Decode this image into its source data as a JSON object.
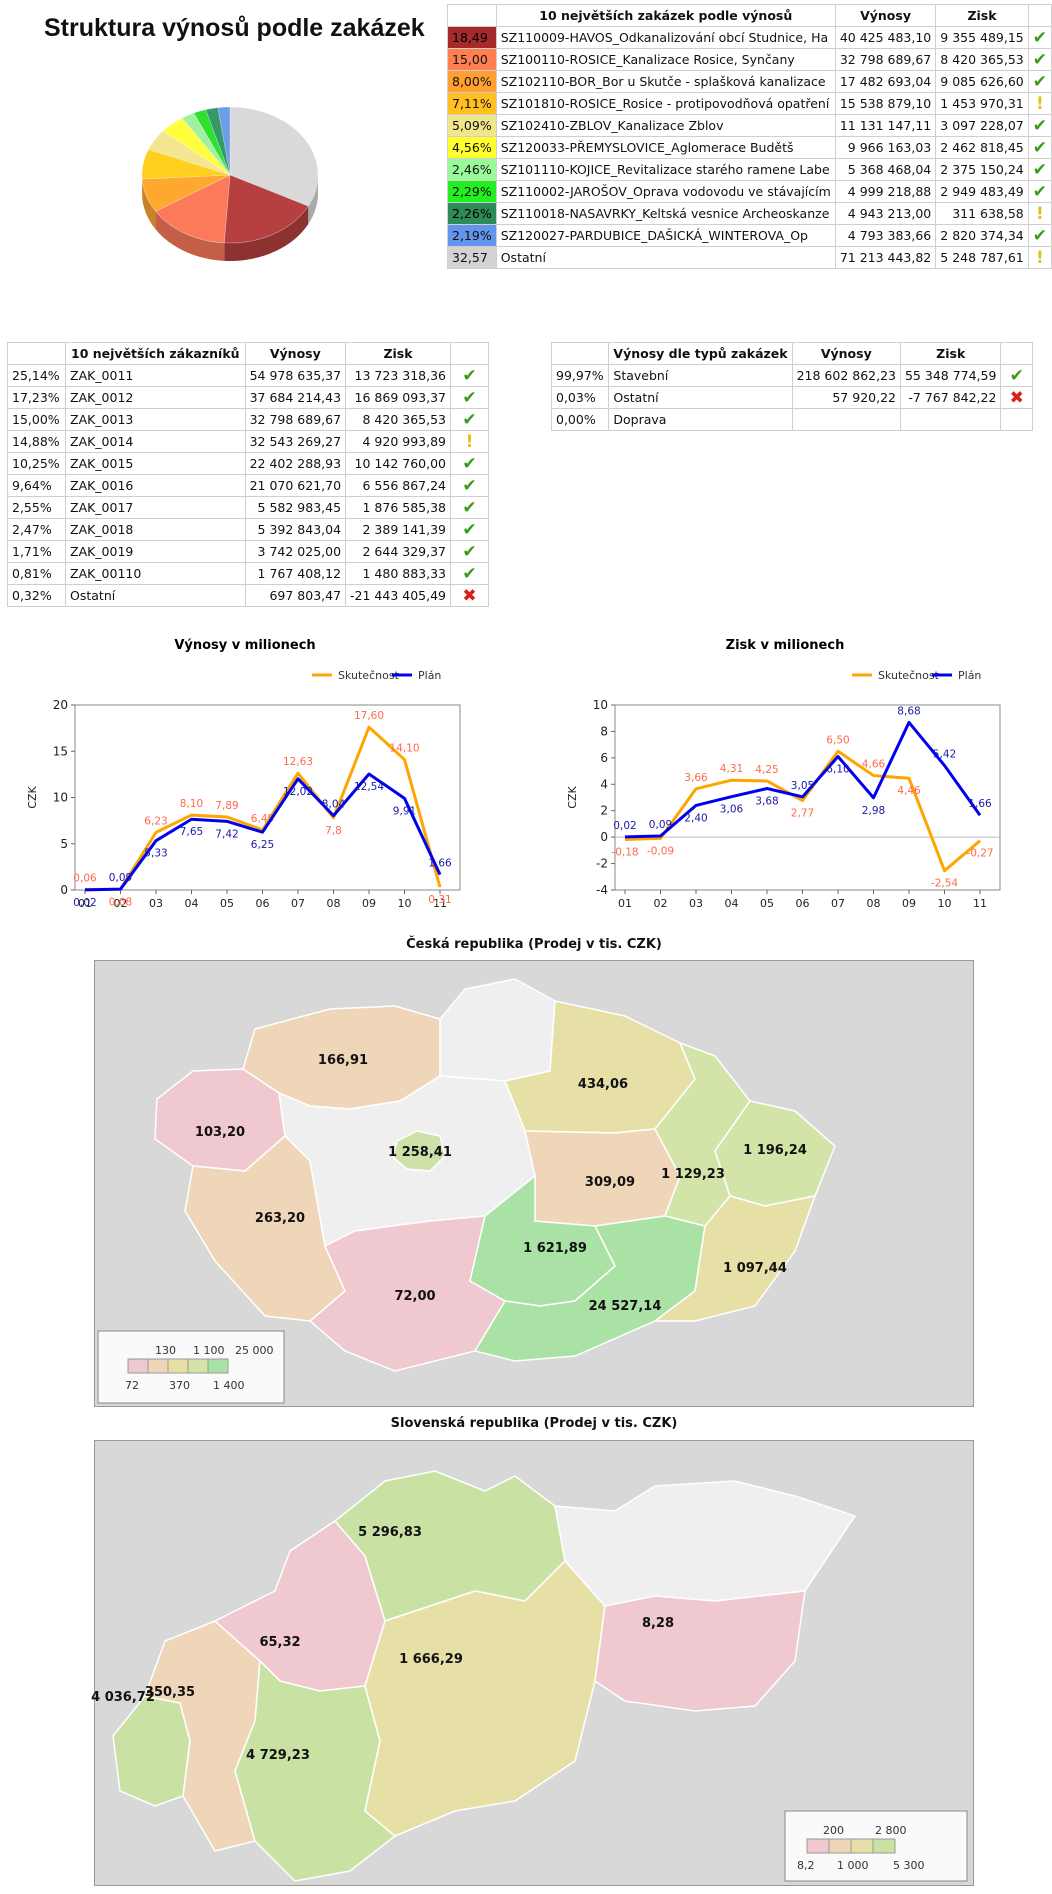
{
  "title": "Struktura výnosů podle zakázek",
  "top_orders": {
    "header": [
      "10 největších zakázek podle výnosů",
      "Výnosy",
      "Zisk"
    ],
    "rows": [
      {
        "pct": "18,49",
        "name": "SZ110009-HAVOS_Odkanalizování obcí Studnice, Ha",
        "rev": "40 425 483,10",
        "profit": "9 355 489,15",
        "status": "ok",
        "color": "#a52a2a"
      },
      {
        "pct": "15,00",
        "name": "SZ100110-ROSICE_Kanalizace Rosice, Synčany",
        "rev": "32 798 689,67",
        "profit": "8 420 365,53",
        "status": "ok",
        "color": "#ff7f50"
      },
      {
        "pct": "8,00%",
        "name": "SZ102110-BOR_Bor u Skutče - splašková kanalizace",
        "rev": "17 482 693,04",
        "profit": "9 085 626,60",
        "status": "ok",
        "color": "#ffa030"
      },
      {
        "pct": "7,11%",
        "name": "SZ101810-ROSICE_Rosice - protipovodňová opatření",
        "rev": "15 538 879,10",
        "profit": "1 453 970,31",
        "status": "warn",
        "color": "#ffc020"
      },
      {
        "pct": "5,09%",
        "name": "SZ102410-ZBLOV_Kanalizace Zblov",
        "rev": "11 131 147,11",
        "profit": "3 097 228,07",
        "status": "ok",
        "color": "#f0e68c"
      },
      {
        "pct": "4,56%",
        "name": "SZ120033-PŘEMYSLOVICE_Aglomerace Budětš",
        "rev": "9 966 163,03",
        "profit": "2 462 818,45",
        "status": "ok",
        "color": "#ffff30"
      },
      {
        "pct": "2,46%",
        "name": "SZ101110-KOJICE_Revitalizace starého ramene Labe",
        "rev": "5 368 468,04",
        "profit": "2 375 150,24",
        "status": "ok",
        "color": "#98fb98"
      },
      {
        "pct": "2,29%",
        "name": "SZ110002-JAROŠOV_Oprava vodovodu ve stávajícím",
        "rev": "4 999 218,88",
        "profit": "2 949 483,49",
        "status": "ok",
        "color": "#22ee22"
      },
      {
        "pct": "2,26%",
        "name": "SZ110018-NASAVRKY_Keltská vesnice Archeoskanze",
        "rev": "4 943 213,00",
        "profit": "311 638,58",
        "status": "warn",
        "color": "#2e8b57"
      },
      {
        "pct": "2,19%",
        "name": "SZ120027-PARDUBICE_DAŠICKÁ_WINTEROVA_Op",
        "rev": "4 793 383,66",
        "profit": "2 820 374,34",
        "status": "ok",
        "color": "#6495ed"
      },
      {
        "pct": "32,57",
        "name": "Ostatní",
        "rev": "71 213 443,82",
        "profit": "5 248 787,61",
        "status": "warn",
        "color": "#d3d3d3"
      }
    ]
  },
  "top_customers": {
    "header": [
      "10 největších zákazníků",
      "Výnosy",
      "Zisk"
    ],
    "rows": [
      {
        "pct": "25,14%",
        "name": "ZAK_0011",
        "rev": "54 978 635,37",
        "profit": "13 723 318,36",
        "status": "ok"
      },
      {
        "pct": "17,23%",
        "name": "ZAK_0012",
        "rev": "37 684 214,43",
        "profit": "16 869 093,37",
        "status": "ok"
      },
      {
        "pct": "15,00%",
        "name": "ZAK_0013",
        "rev": "32 798 689,67",
        "profit": "8 420 365,53",
        "status": "ok"
      },
      {
        "pct": "14,88%",
        "name": "ZAK_0014",
        "rev": "32 543 269,27",
        "profit": "4 920 993,89",
        "status": "warn"
      },
      {
        "pct": "10,25%",
        "name": "ZAK_0015",
        "rev": "22 402 288,93",
        "profit": "10 142 760,00",
        "status": "ok"
      },
      {
        "pct": "9,64%",
        "name": "ZAK_0016",
        "rev": "21 070 621,70",
        "profit": "6 556 867,24",
        "status": "ok"
      },
      {
        "pct": "2,55%",
        "name": "ZAK_0017",
        "rev": "5 582 983,45",
        "profit": "1 876 585,38",
        "status": "ok"
      },
      {
        "pct": "2,47%",
        "name": "ZAK_0018",
        "rev": "5 392 843,04",
        "profit": "2 389 141,39",
        "status": "ok"
      },
      {
        "pct": "1,71%",
        "name": "ZAK_0019",
        "rev": "3 742 025,00",
        "profit": "2 644 329,37",
        "status": "ok"
      },
      {
        "pct": "0,81%",
        "name": "ZAK_00110",
        "rev": "1 767 408,12",
        "profit": "1 480 883,33",
        "status": "ok"
      },
      {
        "pct": "0,32%",
        "name": "Ostatní",
        "rev": "697 803,47",
        "profit": "-21 443 405,49",
        "status": "bad"
      }
    ]
  },
  "order_types": {
    "header": [
      "Výnosy dle typů zakázek",
      "Výnosy",
      "Zisk"
    ],
    "rows": [
      {
        "pct": "99,97%",
        "name": "Stavební",
        "rev": "218 602 862,23",
        "profit": "55 348 774,59",
        "status": "ok"
      },
      {
        "pct": "0,03%",
        "name": "Ostatní",
        "rev": "57 920,22",
        "profit": "-7 767 842,22",
        "status": "bad"
      },
      {
        "pct": "0,00%",
        "name": "Doprava",
        "rev": "",
        "profit": "",
        "status": ""
      }
    ]
  },
  "chart_data": [
    {
      "type": "pie",
      "categories": [
        "18,49",
        "15,00",
        "8,00%",
        "7,11%",
        "5,09%",
        "4,56%",
        "2,46%",
        "2,29%",
        "2,26%",
        "2,19%",
        "32,57"
      ],
      "values": [
        18.49,
        15.0,
        8.0,
        7.11,
        5.09,
        4.56,
        2.46,
        2.29,
        2.26,
        2.19,
        32.57
      ],
      "colors": [
        "#b5403f",
        "#fa7a5a",
        "#ffa830",
        "#ffd020",
        "#f2e690",
        "#ffff40",
        "#a0f0a0",
        "#30e030",
        "#339966",
        "#6f9ce8",
        "#d9d9d9"
      ]
    },
    {
      "type": "line",
      "title": "Výnosy v milionech",
      "ylabel": "CZK",
      "ylim": [
        0,
        20
      ],
      "yticks": [
        "0",
        "5",
        "10",
        "15",
        "20"
      ],
      "categories": [
        "01",
        "02",
        "03",
        "04",
        "05",
        "06",
        "07",
        "08",
        "09",
        "10",
        "11"
      ],
      "series": [
        {
          "name": "Skutečnost",
          "color": "#ffa500",
          "values": [
            0.06,
            0.08,
            6.23,
            8.1,
            7.89,
            6.49,
            12.63,
            7.8,
            17.6,
            14.1,
            0.31
          ],
          "labels": [
            "0,06",
            "0,08",
            "6,23",
            "8,10",
            "7,89",
            "6,49",
            "12,63",
            "7,8",
            "17,60",
            "14,10",
            "0,31"
          ]
        },
        {
          "name": "Plán",
          "color": "#0000ee",
          "values": [
            0.02,
            0.09,
            5.33,
            7.65,
            7.42,
            6.25,
            12.02,
            8.04,
            12.54,
            9.91,
            1.66
          ],
          "labels": [
            "0,02",
            "0,09",
            "5,33",
            "7,65",
            "7,42",
            "6,25",
            "12,02",
            "8,04",
            "12,54",
            "9,91",
            "1,66"
          ]
        }
      ]
    },
    {
      "type": "line",
      "title": "Zisk v milionech",
      "ylabel": "CZK",
      "ylim": [
        -4,
        10
      ],
      "yticks": [
        "-4",
        "-2",
        "0",
        "2",
        "4",
        "6",
        "8",
        "10"
      ],
      "categories": [
        "01",
        "02",
        "03",
        "04",
        "05",
        "06",
        "07",
        "08",
        "09",
        "10",
        "11"
      ],
      "series": [
        {
          "name": "Skutečnost",
          "color": "#ffa500",
          "values": [
            -0.18,
            -0.09,
            3.66,
            4.31,
            4.25,
            2.77,
            6.5,
            4.66,
            4.46,
            -2.54,
            -0.27
          ],
          "labels": [
            "-0,18",
            "-0,09",
            "3,66",
            "4,31",
            "4,25",
            "2,77",
            "6,50",
            "4,66",
            "4,46",
            "-2,54",
            "-0,27"
          ]
        },
        {
          "name": "Plán",
          "color": "#0000ee",
          "values": [
            0.02,
            0.09,
            2.4,
            3.06,
            3.68,
            3.05,
            6.1,
            2.98,
            8.68,
            5.42,
            1.66
          ],
          "labels": [
            "0,02",
            "0,09",
            "2,40",
            "3,06",
            "3,68",
            "3,05",
            "6,10",
            "2,98",
            "8,68",
            "5,42",
            "1,66"
          ]
        }
      ]
    }
  ],
  "map_cz": {
    "title": "Česká republika (Prodej v tis. CZK)",
    "regions": [
      {
        "id": "karlovarsky",
        "value": "103,20",
        "color": "#efc8d0"
      },
      {
        "id": "ustecky",
        "value": "166,91",
        "color": "#efd6b9"
      },
      {
        "id": "liberecky",
        "value": "",
        "color": "#efefef"
      },
      {
        "id": "kralovehradecky",
        "value": "434,06",
        "color": "#e6e0a6"
      },
      {
        "id": "plzensky",
        "value": "263,20",
        "color": "#efd6b9"
      },
      {
        "id": "stredocesky",
        "value": "",
        "color": "#efefef"
      },
      {
        "id": "praha",
        "value": "1 258,41",
        "color": "#cde2a8"
      },
      {
        "id": "pardubicky",
        "value": "309,09",
        "color": "#efd6b9"
      },
      {
        "id": "olomoucky",
        "value": "1 129,23",
        "color": "#d2e4a8"
      },
      {
        "id": "moravskoslezsky",
        "value": "1 196,24",
        "color": "#d2e4a8"
      },
      {
        "id": "jihocesky",
        "value": "72,00",
        "color": "#efc8d0"
      },
      {
        "id": "vysocina",
        "value": "1 621,89",
        "color": "#a9e2a4"
      },
      {
        "id": "jihomoravsky",
        "value": "24 527,14",
        "color": "#a9e2a4"
      },
      {
        "id": "zlinsky",
        "value": "1 097,44",
        "color": "#e6e0a6"
      }
    ],
    "legend_top": [
      "130",
      "1 100",
      "25 000"
    ],
    "legend_bottom": [
      "72",
      "370",
      "1 400"
    ],
    "legend_colors": [
      "#efc8d0",
      "#efd6b9",
      "#e6e0a6",
      "#d2e4a8",
      "#a9e2a4"
    ]
  },
  "map_sk": {
    "title": "Slovenská republika (Prodej v tis. CZK)",
    "regions": [
      {
        "id": "bratislavsky",
        "value": "4 036,72",
        "color": "#c9e2a4"
      },
      {
        "id": "trnavsky",
        "value": "350,35",
        "color": "#efd6b9"
      },
      {
        "id": "trenciansky",
        "value": "65,32",
        "color": "#efc8d0"
      },
      {
        "id": "zilinsky",
        "value": "5 296,83",
        "color": "#c9e2a4"
      },
      {
        "id": "nitriansky",
        "value": "4 729,23",
        "color": "#c9e2a4"
      },
      {
        "id": "banskobystricky",
        "value": "1 666,29",
        "color": "#e6e0a6"
      },
      {
        "id": "presovsky",
        "value": "",
        "color": "#efefef"
      },
      {
        "id": "kosicky",
        "value": "8,28",
        "color": "#efc8d0"
      }
    ],
    "legend_top": [
      "200",
      "2 800"
    ],
    "legend_bottom": [
      "8,2",
      "1 000",
      "5 300"
    ],
    "legend_colors": [
      "#efc8d0",
      "#efd6b9",
      "#e6e0a6",
      "#c9e2a4"
    ]
  }
}
